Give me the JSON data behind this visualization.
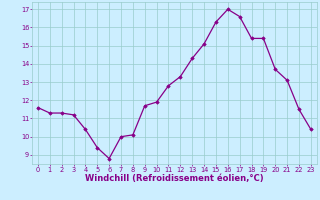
{
  "x": [
    0,
    1,
    2,
    3,
    4,
    5,
    6,
    7,
    8,
    9,
    10,
    11,
    12,
    13,
    14,
    15,
    16,
    17,
    18,
    19,
    20,
    21,
    22,
    23
  ],
  "y": [
    11.6,
    11.3,
    11.3,
    11.2,
    10.4,
    9.4,
    8.8,
    10.0,
    10.1,
    11.7,
    11.9,
    12.8,
    13.3,
    14.3,
    15.1,
    16.3,
    17.0,
    16.6,
    15.4,
    15.4,
    13.7,
    13.1,
    11.5,
    10.4
  ],
  "line_color": "#880088",
  "marker": "D",
  "marker_size": 1.8,
  "bg_color": "#cceeff",
  "grid_color": "#99cccc",
  "xlabel": "Windchill (Refroidissement éolien,°C)",
  "xlabel_color": "#880088",
  "ylim": [
    8.5,
    17.4
  ],
  "yticks": [
    9,
    10,
    11,
    12,
    13,
    14,
    15,
    16,
    17
  ],
  "xlim": [
    -0.5,
    23.5
  ],
  "xticks": [
    0,
    1,
    2,
    3,
    4,
    5,
    6,
    7,
    8,
    9,
    10,
    11,
    12,
    13,
    14,
    15,
    16,
    17,
    18,
    19,
    20,
    21,
    22,
    23
  ],
  "tick_color": "#880088",
  "tick_fontsize": 4.8,
  "xlabel_fontsize": 6.0,
  "linewidth": 0.9
}
